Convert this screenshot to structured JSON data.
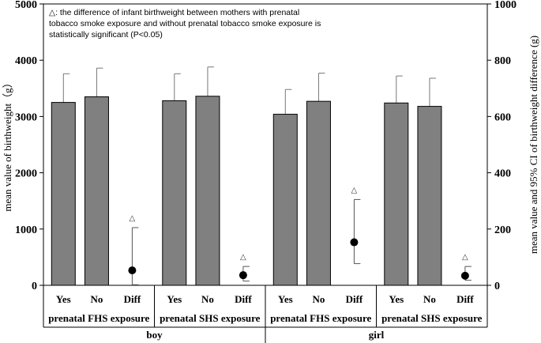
{
  "chart_data": {
    "type": "bar",
    "note": "△: the difference of infant birthweight between mothers with prenatal tobacco smoke exposure and without prenatal tobacco smoke exposure is statistically significant (P<0.05)",
    "note_lines": [
      "△: the difference of infant birthweight between mothers with prenatal",
      "tobacco smoke exposure and without prenatal tobacco smoke exposure is",
      "statistically significant (P<0.05)"
    ],
    "ylabel_left": "mean value of birthweight（g）",
    "ylabel_right": "mean value and 95% CI of birthweight difference (g)",
    "ylim_left": [
      0,
      5000
    ],
    "ylim_right": [
      0,
      1000
    ],
    "yticks_left": [
      "0",
      "1000",
      "2000",
      "3000",
      "4000",
      "5000"
    ],
    "yticks_right": [
      "0",
      "200",
      "400",
      "600",
      "800",
      "1000"
    ],
    "category_labels": [
      "Yes",
      "No",
      "Diff"
    ],
    "sexes": [
      "boy",
      "girl"
    ],
    "significance_marker": "△",
    "groups": [
      {
        "sex": "boy",
        "exposure": "prenatal FHS exposure",
        "bars": [
          {
            "label": "Yes",
            "mean": 3250,
            "sd_upper": 3760
          },
          {
            "label": "No",
            "mean": 3350,
            "sd_upper": 3860
          }
        ],
        "diff": {
          "label": "Diff",
          "mean": 53,
          "ci_low": 2,
          "ci_high": 205,
          "significant": true
        }
      },
      {
        "sex": "boy",
        "exposure": "prenatal SHS exposure",
        "bars": [
          {
            "label": "Yes",
            "mean": 3280,
            "sd_upper": 3760
          },
          {
            "label": "No",
            "mean": 3360,
            "sd_upper": 3880
          }
        ],
        "diff": {
          "label": "Diff",
          "mean": 36,
          "ci_low": 15,
          "ci_high": 67,
          "significant": true
        }
      },
      {
        "sex": "girl",
        "exposure": "prenatal FHS exposure",
        "bars": [
          {
            "label": "Yes",
            "mean": 3040,
            "sd_upper": 3480
          },
          {
            "label": "No",
            "mean": 3270,
            "sd_upper": 3770
          }
        ],
        "diff": {
          "label": "Diff",
          "mean": 153,
          "ci_low": 77,
          "ci_high": 305,
          "significant": true
        }
      },
      {
        "sex": "girl",
        "exposure": "prenatal SHS exposure",
        "bars": [
          {
            "label": "Yes",
            "mean": 3240,
            "sd_upper": 3720
          },
          {
            "label": "No",
            "mean": 3180,
            "sd_upper": 3680
          }
        ],
        "diff": {
          "label": "Diff",
          "mean": 34,
          "ci_low": 18,
          "ci_high": 67,
          "significant": true
        }
      }
    ],
    "bar_color": "#808080"
  }
}
